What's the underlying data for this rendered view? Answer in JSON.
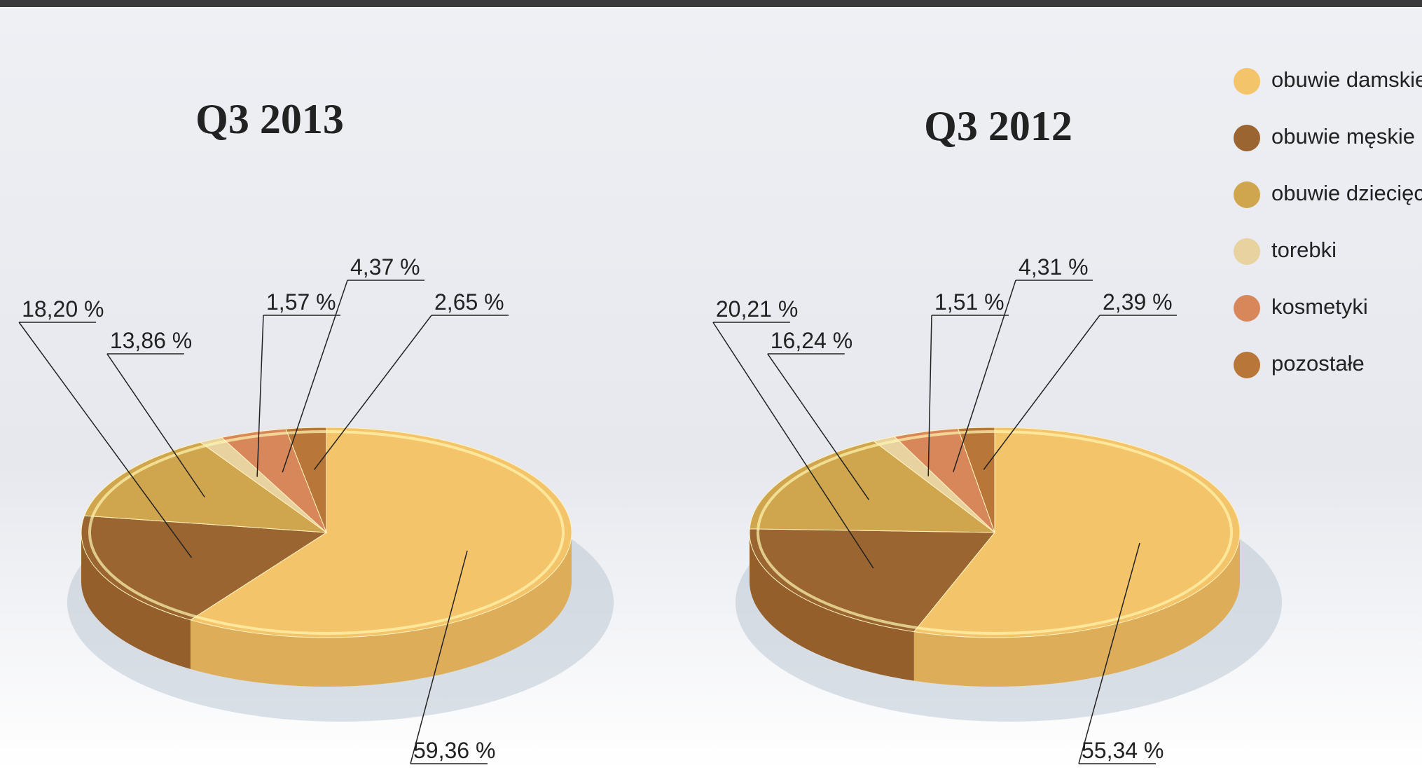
{
  "chart_data": [
    {
      "type": "pie",
      "title": "Q3 2013",
      "categories": [
        "obuwie damskie",
        "obuwie męskie",
        "obuwie dziecięce",
        "torebki",
        "kosmetyki",
        "pozostałe"
      ],
      "values": [
        59.36,
        18.2,
        13.86,
        1.57,
        4.37,
        2.65
      ],
      "value_labels": [
        "59,36 %",
        "18,20 %",
        "13,86 %",
        "1,57 %",
        "4,37 %",
        "2,65 %"
      ],
      "colors": [
        "#f3c46a",
        "#9a6530",
        "#cfa64e",
        "#e8d2a0",
        "#d8875a",
        "#b87638"
      ]
    },
    {
      "type": "pie",
      "title": "Q3 2012",
      "categories": [
        "obuwie damskie",
        "obuwie męskie",
        "obuwie dziecięce",
        "torebki",
        "kosmetyki",
        "pozostałe"
      ],
      "values": [
        55.34,
        20.21,
        16.24,
        1.51,
        4.31,
        2.39
      ],
      "value_labels": [
        "55,34 %",
        "20,21 %",
        "16,24 %",
        "1,51 %",
        "4,31 %",
        "2,39 %"
      ],
      "colors": [
        "#f3c46a",
        "#9a6530",
        "#cfa64e",
        "#e8d2a0",
        "#d8875a",
        "#b87638"
      ]
    }
  ]
}
